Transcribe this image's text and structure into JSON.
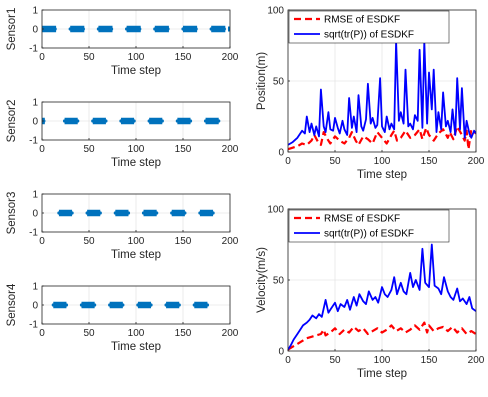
{
  "colors": {
    "sensor": "#0072BD",
    "rmse": "#FF0000",
    "sqrt_trace": "#0000FF"
  },
  "chart_data": [
    {
      "type": "scatter",
      "xlabel": "Time step",
      "ylabel": "Sensor1",
      "xlim": [
        0,
        200
      ],
      "ylim": [
        -1,
        1
      ],
      "xticks": [
        "0",
        "50",
        "100",
        "150",
        "200"
      ],
      "yticks": [
        "1",
        "0",
        "-1"
      ],
      "grid": true,
      "active_intervals": [
        [
          0,
          15
        ],
        [
          30,
          45
        ],
        [
          60,
          75
        ],
        [
          90,
          105
        ],
        [
          120,
          135
        ],
        [
          150,
          165
        ],
        [
          180,
          195
        ],
        [
          200,
          200
        ]
      ],
      "value": 0
    },
    {
      "type": "scatter",
      "xlabel": "Time step",
      "ylabel": "Sensor2",
      "xlim": [
        0,
        200
      ],
      "ylim": [
        -1,
        1
      ],
      "xticks": [
        "0",
        "50",
        "100",
        "150",
        "200"
      ],
      "yticks": [
        "1",
        "0",
        "-1"
      ],
      "grid": true,
      "active_intervals": [
        [
          0,
          3
        ],
        [
          24,
          38
        ],
        [
          54,
          68
        ],
        [
          84,
          98
        ],
        [
          114,
          128
        ],
        [
          144,
          158
        ],
        [
          174,
          188
        ]
      ],
      "value": 0
    },
    {
      "type": "scatter",
      "xlabel": "Time step",
      "ylabel": "Sensor3",
      "xlim": [
        0,
        200
      ],
      "ylim": [
        -1,
        1
      ],
      "xticks": [
        "0",
        "50",
        "100",
        "150",
        "200"
      ],
      "yticks": [
        "1",
        "0",
        "-1"
      ],
      "grid": true,
      "active_intervals": [
        [
          18,
          32
        ],
        [
          48,
          62
        ],
        [
          78,
          92
        ],
        [
          108,
          122
        ],
        [
          138,
          152
        ],
        [
          168,
          182
        ]
      ],
      "value": 0
    },
    {
      "type": "scatter",
      "xlabel": "Time step",
      "ylabel": "Sensor4",
      "xlim": [
        0,
        200
      ],
      "ylim": [
        -1,
        1
      ],
      "xticks": [
        "0",
        "50",
        "100",
        "150",
        "200"
      ],
      "yticks": [
        "1",
        "0",
        "-1"
      ],
      "grid": true,
      "active_intervals": [
        [
          12,
          26
        ],
        [
          42,
          56
        ],
        [
          72,
          86
        ],
        [
          102,
          116
        ],
        [
          132,
          146
        ],
        [
          162,
          176
        ]
      ],
      "value": 0
    },
    {
      "type": "line",
      "xlabel": "Time step",
      "ylabel": "Position(m)",
      "xlim": [
        0,
        200
      ],
      "ylim": [
        0,
        100
      ],
      "xticks": [
        "0",
        "50",
        "100",
        "150",
        "200"
      ],
      "yticks": [
        "100",
        "50",
        "0"
      ],
      "grid": true,
      "legend": "top-left",
      "series": [
        {
          "name": "RMSE of ESDKF",
          "style": "dashed",
          "x": [
            0,
            5,
            10,
            15,
            20,
            25,
            28,
            32,
            35,
            38,
            42,
            45,
            50,
            55,
            60,
            65,
            68,
            72,
            75,
            80,
            85,
            90,
            95,
            100,
            105,
            110,
            113,
            116,
            120,
            125,
            130,
            135,
            140,
            143,
            147,
            150,
            155,
            160,
            165,
            170,
            172,
            176,
            180,
            185,
            188,
            190,
            192,
            195,
            200
          ],
          "y": [
            2,
            3,
            4,
            6,
            5,
            8,
            12,
            7,
            5,
            14,
            9,
            6,
            11,
            8,
            6,
            10,
            14,
            8,
            5,
            11,
            9,
            6,
            14,
            10,
            6,
            12,
            15,
            8,
            10,
            15,
            10,
            12,
            16,
            9,
            17,
            12,
            8,
            13,
            16,
            10,
            14,
            9,
            18,
            12,
            8,
            15,
            2,
            16,
            13
          ]
        },
        {
          "name": "sqrt(tr(P)) of ESDKF",
          "style": "solid",
          "x": [
            0,
            5,
            10,
            15,
            18,
            20,
            23,
            25,
            28,
            30,
            33,
            35,
            38,
            40,
            43,
            45,
            48,
            50,
            53,
            55,
            58,
            60,
            63,
            65,
            68,
            70,
            73,
            75,
            78,
            80,
            83,
            85,
            88,
            90,
            93,
            95,
            98,
            100,
            103,
            105,
            108,
            110,
            113,
            115,
            118,
            120,
            123,
            125,
            128,
            130,
            133,
            135,
            138,
            140,
            143,
            145,
            148,
            150,
            153,
            155,
            158,
            160,
            163,
            165,
            168,
            170,
            173,
            175,
            178,
            180,
            183,
            185,
            188,
            190,
            193,
            195,
            198,
            200
          ],
          "y": [
            5,
            7,
            10,
            15,
            13,
            25,
            14,
            20,
            12,
            18,
            11,
            44,
            18,
            14,
            28,
            16,
            15,
            24,
            17,
            13,
            22,
            16,
            12,
            38,
            17,
            25,
            14,
            40,
            18,
            15,
            23,
            48,
            20,
            24,
            17,
            19,
            52,
            18,
            14,
            25,
            16,
            20,
            16,
            78,
            22,
            28,
            20,
            58,
            18,
            20,
            16,
            26,
            22,
            72,
            17,
            78,
            20,
            56,
            30,
            58,
            14,
            28,
            16,
            42,
            18,
            22,
            14,
            30,
            12,
            52,
            16,
            45,
            10,
            22,
            13,
            10,
            15,
            13
          ]
        }
      ]
    },
    {
      "type": "line",
      "xlabel": "Time step",
      "ylabel": "Velocity(m/s)",
      "xlim": [
        0,
        200
      ],
      "ylim": [
        0,
        100
      ],
      "xticks": [
        "0",
        "50",
        "100",
        "150",
        "200"
      ],
      "yticks": [
        "100",
        "50",
        "0"
      ],
      "grid": true,
      "legend": "top-left",
      "series": [
        {
          "name": "RMSE of ESDKF",
          "style": "dashed",
          "x": [
            0,
            5,
            10,
            15,
            20,
            25,
            30,
            35,
            38,
            40,
            45,
            50,
            55,
            60,
            65,
            70,
            75,
            80,
            85,
            90,
            95,
            100,
            105,
            110,
            115,
            120,
            125,
            130,
            135,
            140,
            145,
            148,
            150,
            155,
            160,
            165,
            170,
            175,
            180,
            185,
            190,
            195,
            200
          ],
          "y": [
            1,
            3,
            5,
            7,
            9,
            10,
            11,
            12,
            15,
            11,
            13,
            16,
            12,
            15,
            13,
            17,
            14,
            16,
            12,
            14,
            16,
            13,
            15,
            18,
            14,
            16,
            13,
            15,
            18,
            15,
            20,
            13,
            18,
            14,
            16,
            17,
            14,
            17,
            13,
            16,
            12,
            14,
            12
          ]
        },
        {
          "name": "sqrt(tr(P)) of ESDKF",
          "style": "solid",
          "x": [
            0,
            3,
            6,
            10,
            13,
            16,
            20,
            23,
            26,
            30,
            33,
            36,
            40,
            43,
            46,
            50,
            53,
            56,
            60,
            63,
            66,
            70,
            73,
            76,
            80,
            83,
            86,
            90,
            93,
            96,
            100,
            103,
            106,
            110,
            113,
            116,
            120,
            123,
            126,
            130,
            133,
            136,
            140,
            143,
            146,
            150,
            153,
            156,
            160,
            163,
            166,
            170,
            173,
            176,
            180,
            183,
            186,
            190,
            193,
            196,
            200
          ],
          "y": [
            1,
            4,
            8,
            12,
            15,
            18,
            20,
            22,
            25,
            23,
            26,
            24,
            36,
            27,
            30,
            34,
            28,
            33,
            31,
            36,
            29,
            38,
            32,
            40,
            35,
            33,
            42,
            36,
            38,
            34,
            45,
            40,
            38,
            43,
            52,
            40,
            48,
            42,
            40,
            55,
            45,
            50,
            43,
            72,
            48,
            45,
            75,
            46,
            44,
            40,
            52,
            42,
            38,
            36,
            44,
            35,
            37,
            33,
            38,
            30,
            28
          ]
        }
      ]
    }
  ]
}
